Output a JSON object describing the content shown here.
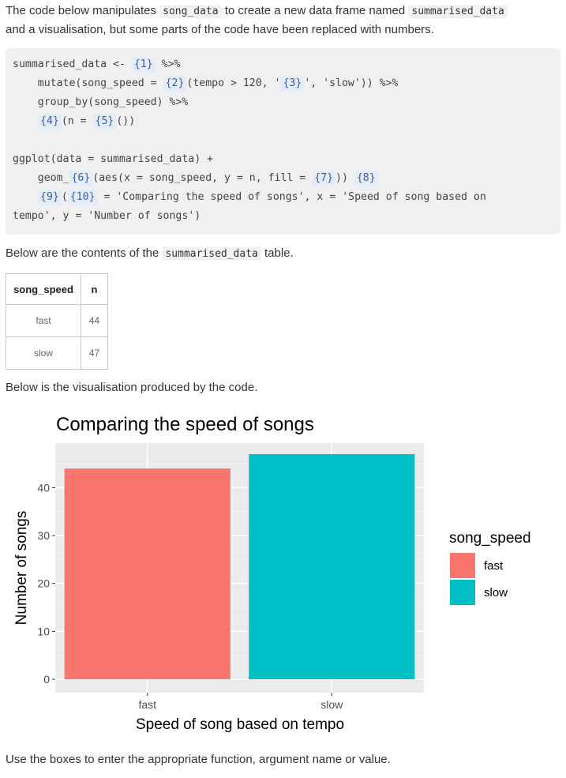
{
  "intro": {
    "p1": "The code below manipulates ",
    "c1": "song_data",
    "p2": " to create a new data frame named ",
    "c2": "summarised_data",
    "p3": "and a visualisation, but some parts of the code have been replaced with numbers."
  },
  "code": {
    "l1a": "summarised_data <- ",
    "b1": "{1}",
    "l1b": " %>%",
    "l2a": "    mutate(song_speed = ",
    "b2": "{2}",
    "l2b": "(tempo > 120, '",
    "b3": "{3}",
    "l2c": "', 'slow')) %>%",
    "l3": "    group_by(song_speed) %>%",
    "b4": "{4}",
    "l4a": "(n = ",
    "b5": "{5}",
    "l4b": "())",
    "l5": "ggplot(data = summarised_data) +",
    "l6a": "    geom_",
    "b6": "{6}",
    "l6b": "(aes(x = song_speed, y = n, fill = ",
    "b7": "{7}",
    "l6c": ")) ",
    "b8": "{8}",
    "b9": "{9}",
    "l7a": "(",
    "b10": "{10}",
    "l7b": " = 'Comparing the speed of songs', x = 'Speed of song based on",
    "l8": "tempo', y = 'Number of songs')"
  },
  "table_intro": {
    "p1": "Below are the contents of the ",
    "c1": "summarised_data",
    "p2": " table."
  },
  "table": {
    "headers": [
      "song_speed",
      "n"
    ],
    "rows": [
      [
        "fast",
        "44"
      ],
      [
        "slow",
        "47"
      ]
    ]
  },
  "vis_intro": "Below is the visualisation produced by the code.",
  "chart_data": {
    "type": "bar",
    "title": "Comparing the speed of songs",
    "xlabel": "Speed of song based on tempo",
    "ylabel": "Number of songs",
    "categories": [
      "fast",
      "slow"
    ],
    "values": [
      44,
      47
    ],
    "yticks": [
      "0",
      "10",
      "20",
      "30",
      "40"
    ],
    "ylim": [
      0,
      47
    ],
    "colors": [
      "#F8766D",
      "#00BFC4"
    ],
    "legend": {
      "title": "song_speed",
      "entries": [
        "fast",
        "slow"
      ],
      "placement": "right"
    },
    "grid": true
  },
  "footer": "Use the boxes to enter the appropriate function, argument name or value."
}
